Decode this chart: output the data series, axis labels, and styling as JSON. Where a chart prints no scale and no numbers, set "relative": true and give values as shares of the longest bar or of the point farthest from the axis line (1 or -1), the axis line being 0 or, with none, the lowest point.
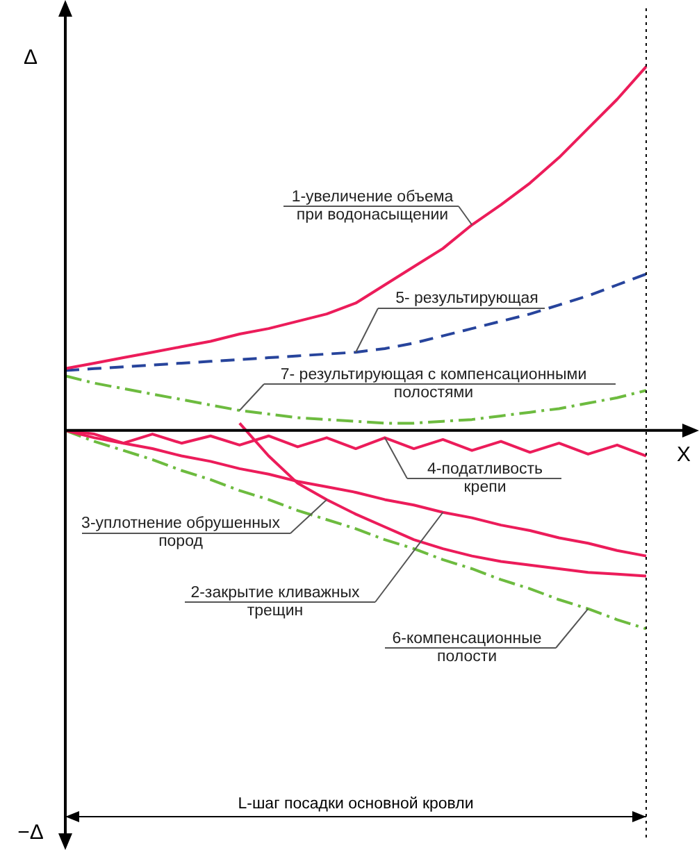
{
  "chart_data": {
    "type": "line",
    "relative": true,
    "ylabel": "Δ",
    "xlabel": "X",
    "legend": false,
    "marker": "none",
    "tick_labels": false,
    "categories": [
      null,
      null,
      null,
      null,
      null,
      null,
      null,
      null,
      null,
      null,
      null,
      null,
      null,
      null,
      null,
      null,
      null,
      null,
      null,
      null,
      null
    ],
    "series": [
      {
        "name": "1-увеличение объема\nпри водонасыщении",
        "color": "#ec1c5a",
        "line_style": "solid",
        "values": [
          0.17,
          0.185,
          0.2,
          0.215,
          0.23,
          0.245,
          0.265,
          0.28,
          0.3,
          0.32,
          0.35,
          0.4,
          0.45,
          0.5,
          0.565,
          0.62,
          0.68,
          0.75,
          0.83,
          0.91,
          1
        ]
      },
      {
        "name": "5- результирующая",
        "color": "#27449c",
        "line_style": "dashed",
        "values": [
          0.165,
          0.17,
          0.175,
          0.18,
          0.185,
          0.19,
          0.195,
          0.2,
          0.205,
          0.21,
          0.215,
          0.225,
          0.24,
          0.26,
          0.28,
          0.3,
          0.32,
          0.345,
          0.37,
          0.4,
          0.43
        ]
      },
      {
        "name": "7- результирующая с компенсационными\nполостями",
        "color": "#6dbb3f",
        "line_style": "dashdot",
        "values": [
          0.15,
          0.13,
          0.115,
          0.1,
          0.085,
          0.07,
          0.055,
          0.045,
          0.035,
          0.03,
          0.025,
          0.02,
          0.02,
          0.025,
          0.03,
          0.04,
          0.05,
          0.06,
          0.075,
          0.09,
          0.11
        ]
      },
      {
        "name": "4-податливость\nкрепи",
        "color": "#ec1c5a",
        "line_style": "solid",
        "values": [
          0,
          -0.01,
          -0.035,
          -0.01,
          -0.035,
          -0.015,
          -0.04,
          -0.015,
          -0.045,
          -0.02,
          -0.05,
          -0.02,
          -0.05,
          -0.025,
          -0.055,
          -0.03,
          -0.06,
          -0.035,
          -0.065,
          -0.04,
          -0.07
        ]
      },
      {
        "name": "3-уплотнение обрушенных\nпород",
        "color": "#ec1c5a",
        "line_style": "solid",
        "values": [
          null,
          null,
          null,
          null,
          null,
          null,
          0.02,
          -0.07,
          -0.145,
          -0.19,
          -0.23,
          -0.265,
          -0.3,
          -0.325,
          -0.345,
          -0.36,
          -0.37,
          -0.38,
          -0.39,
          -0.395,
          -0.4
        ]
      },
      {
        "name": "2-закрытие кливажных\nтрещин",
        "color": "#ec1c5a",
        "line_style": "solid",
        "values": [
          0,
          -0.02,
          -0.035,
          -0.05,
          -0.07,
          -0.085,
          -0.105,
          -0.12,
          -0.14,
          -0.155,
          -0.17,
          -0.19,
          -0.205,
          -0.225,
          -0.24,
          -0.26,
          -0.275,
          -0.295,
          -0.31,
          -0.33,
          -0.345
        ]
      },
      {
        "name": "6-компенсационные\nполости",
        "color": "#6dbb3f",
        "line_style": "dashdot",
        "values": [
          0,
          -0.03,
          -0.055,
          -0.08,
          -0.11,
          -0.135,
          -0.165,
          -0.19,
          -0.22,
          -0.245,
          -0.27,
          -0.3,
          -0.325,
          -0.355,
          -0.38,
          -0.41,
          -0.435,
          -0.465,
          -0.49,
          -0.52,
          -0.545
        ]
      }
    ],
    "annotations": [
      "−Δ",
      "L-шаг посадки основной кровли"
    ]
  }
}
